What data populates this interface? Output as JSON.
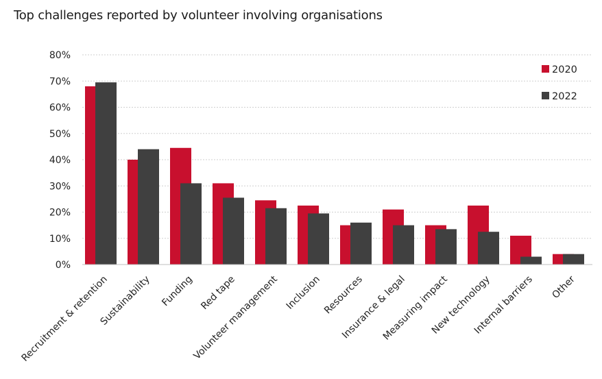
{
  "chart_data": {
    "type": "bar",
    "title": "Top challenges reported by volunteer involving organisations",
    "xlabel": "",
    "ylabel": "",
    "ylim": [
      0,
      80
    ],
    "yticks": [
      "0%",
      "10%",
      "20%",
      "30%",
      "40%",
      "50%",
      "60%",
      "70%",
      "80%"
    ],
    "grid": true,
    "legend_position": "top-right",
    "categories": [
      "Recruitment & retention",
      "Sustainability",
      "Funding",
      "Red tape",
      "Volunteer management",
      "Inclusion",
      "Resources",
      "Insurance & legal",
      "Measuring impact",
      "New technology",
      "Internal barriers",
      "Other"
    ],
    "series": [
      {
        "name": "2020",
        "color": "#c8102e",
        "values": [
          68,
          40,
          44.5,
          31,
          24.5,
          22.5,
          15,
          21,
          15,
          22.5,
          11,
          4
        ]
      },
      {
        "name": "2022",
        "color": "#404040",
        "values": [
          69.5,
          44,
          31,
          25.5,
          21.5,
          19.5,
          16,
          15,
          13.5,
          12.5,
          3,
          4
        ]
      }
    ]
  }
}
